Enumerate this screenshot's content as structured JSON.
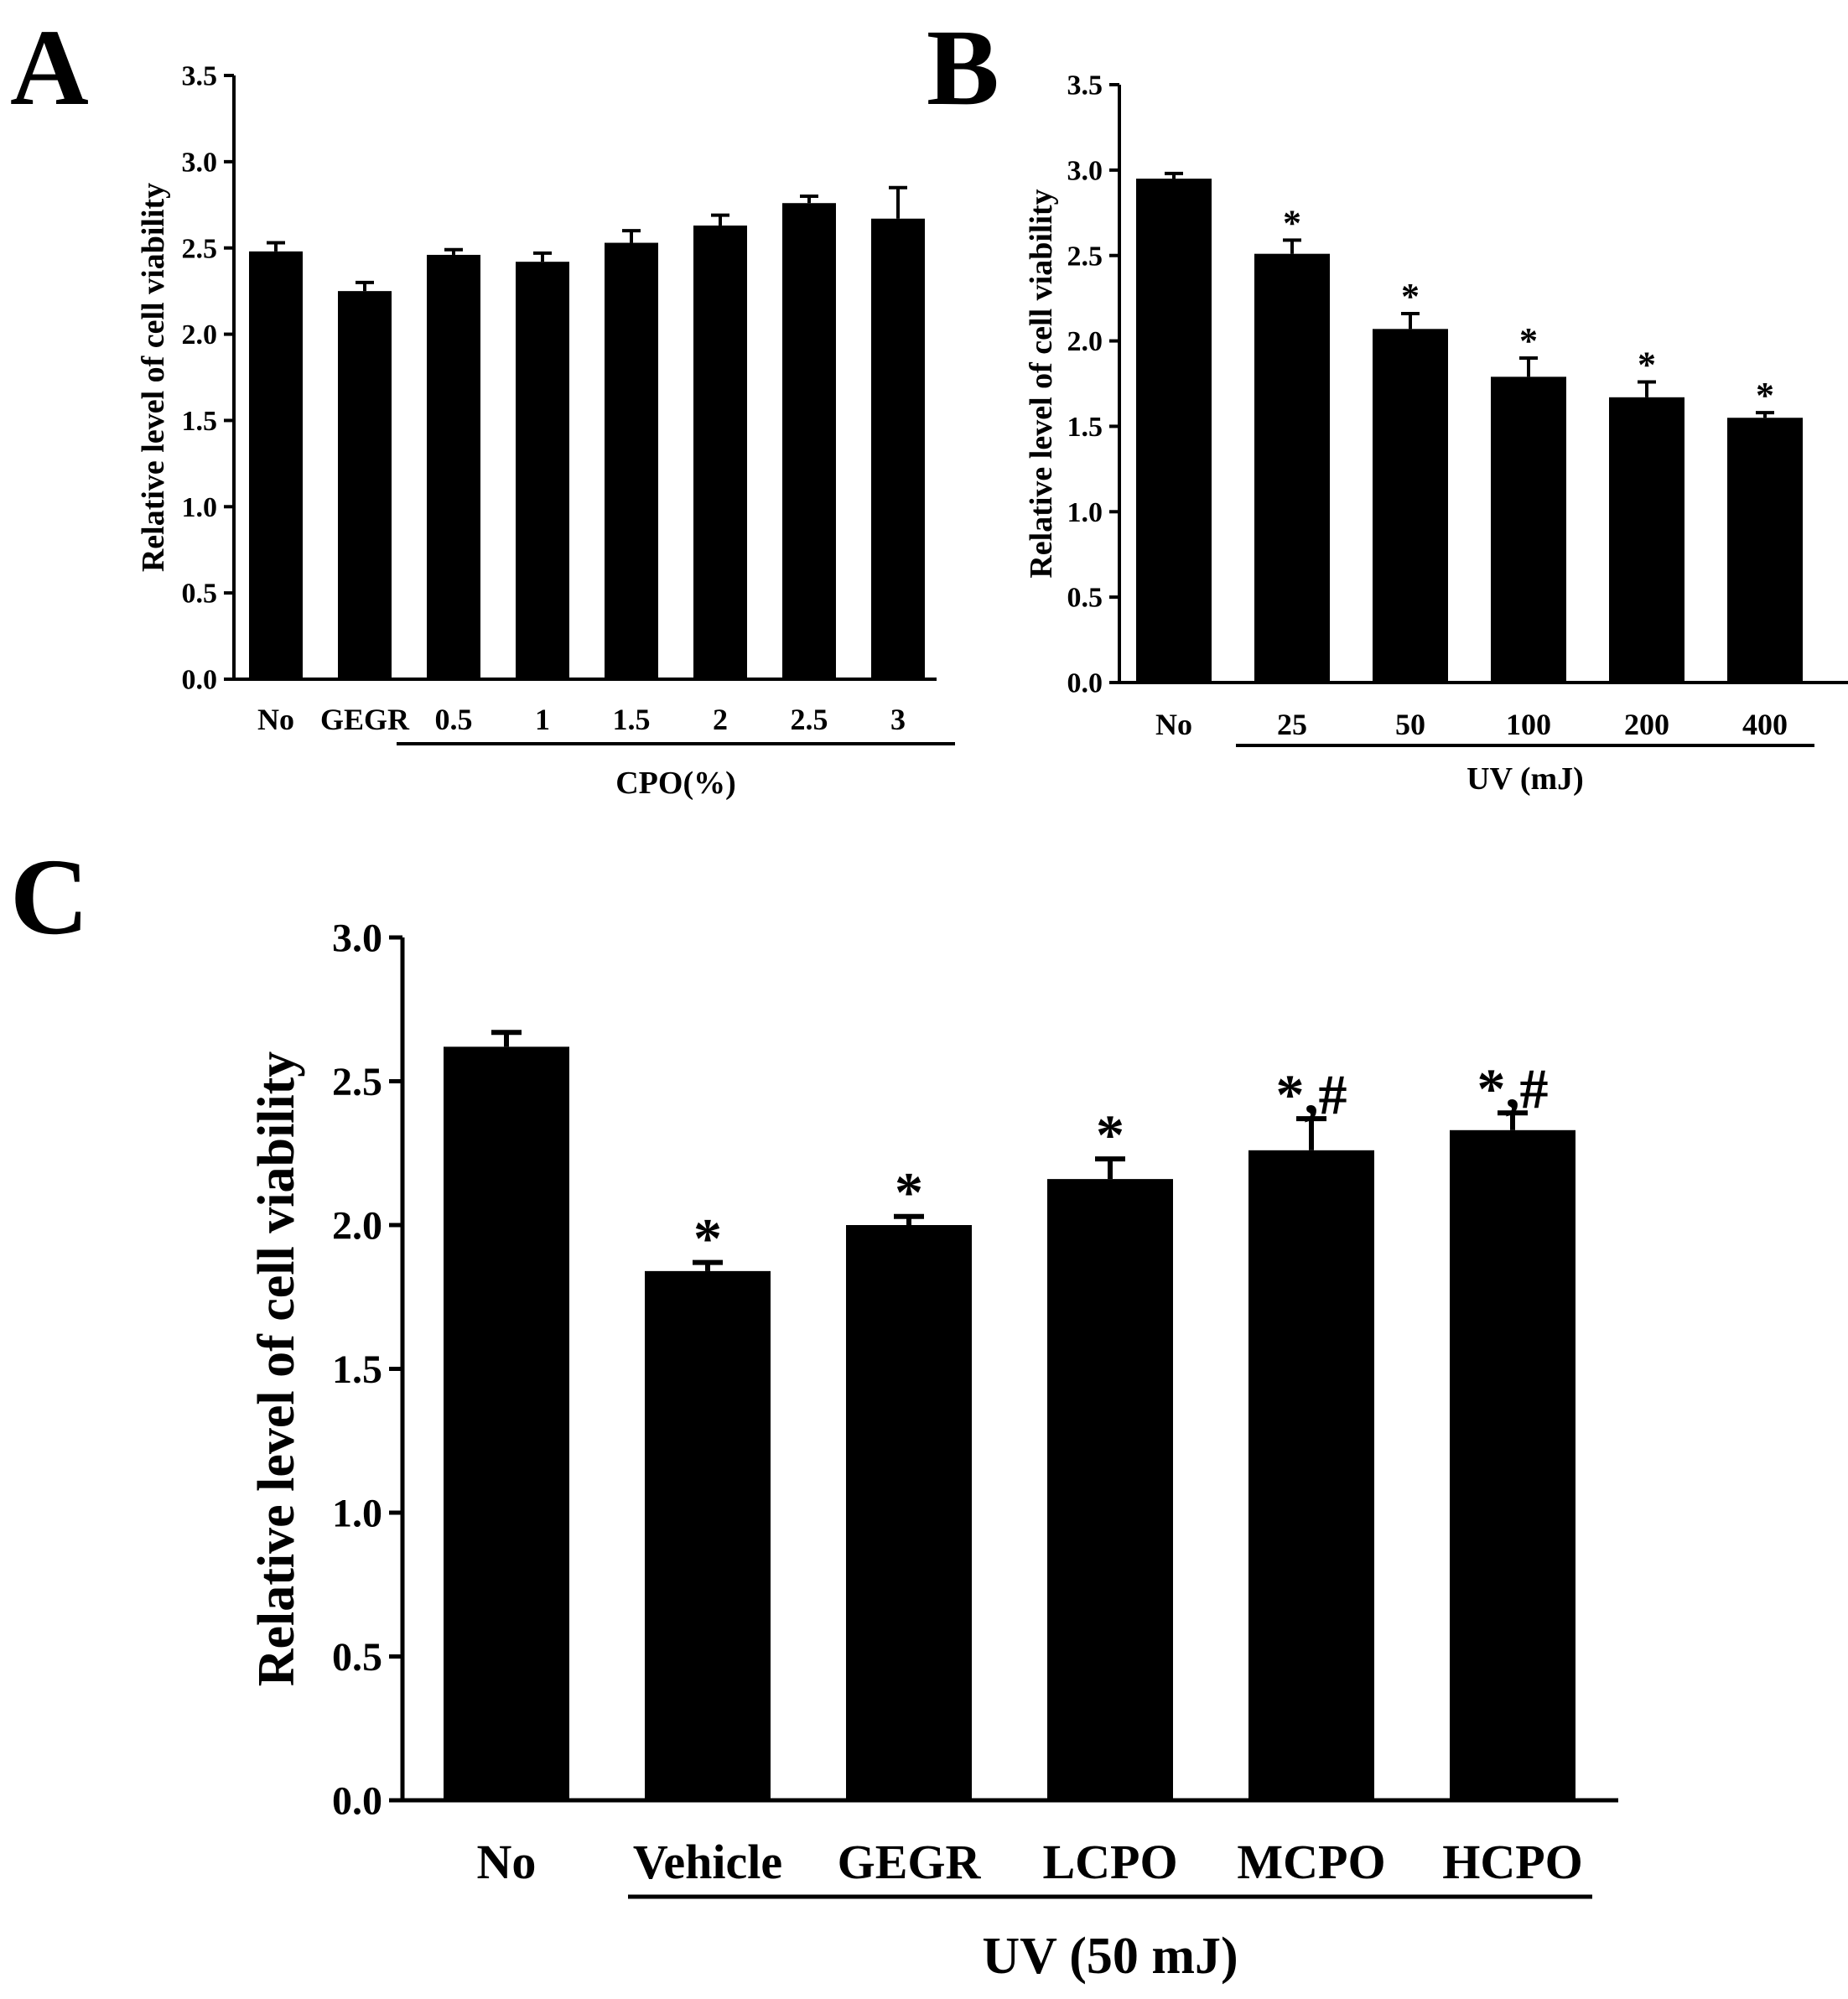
{
  "figure": {
    "colors": {
      "bar": "#000000",
      "axis": "#000000",
      "background": "#ffffff"
    }
  },
  "chart_data": [
    {
      "panel": "A",
      "type": "bar",
      "ylabel": "Relative level of cell viability",
      "xlabel": "",
      "ylim": [
        0,
        3.5
      ],
      "yticks": [
        "0.0",
        "0.5",
        "1.0",
        "1.5",
        "2.0",
        "2.5",
        "3.0",
        "3.5"
      ],
      "categories": [
        "No",
        "GEGR",
        "0.5",
        "1",
        "1.5",
        "2",
        "2.5",
        "3"
      ],
      "values": [
        2.48,
        2.25,
        2.46,
        2.42,
        2.53,
        2.63,
        2.76,
        2.67
      ],
      "errors": [
        0.05,
        0.05,
        0.03,
        0.05,
        0.07,
        0.06,
        0.04,
        0.18
      ],
      "annotations": [
        "",
        "",
        "",
        "",
        "",
        "",
        "",
        ""
      ],
      "group": {
        "label": "CPO(%)",
        "start": 2,
        "end": 7
      }
    },
    {
      "panel": "B",
      "type": "bar",
      "ylabel": "Relative level of cell viability",
      "xlabel": "",
      "ylim": [
        0,
        3.5
      ],
      "yticks": [
        "0.0",
        "0.5",
        "1.0",
        "1.5",
        "2.0",
        "2.5",
        "3.0",
        "3.5"
      ],
      "categories": [
        "No",
        "25",
        "50",
        "100",
        "200",
        "400"
      ],
      "values": [
        2.95,
        2.51,
        2.07,
        1.79,
        1.67,
        1.55
      ],
      "errors": [
        0.03,
        0.08,
        0.09,
        0.11,
        0.09,
        0.03
      ],
      "annotations": [
        "",
        "*",
        "*",
        "*",
        "*",
        "*"
      ],
      "group": {
        "label": "UV (mJ)",
        "start": 1,
        "end": 5
      }
    },
    {
      "panel": "C",
      "type": "bar",
      "ylabel": "Relative level of cell viability",
      "xlabel": "",
      "ylim": [
        0,
        3.0
      ],
      "yticks": [
        "0.0",
        "0.5",
        "1.0",
        "1.5",
        "2.0",
        "2.5",
        "3.0"
      ],
      "categories": [
        "No",
        "Vehicle",
        "GEGR",
        "LCPO",
        "MCPO",
        "HCPO"
      ],
      "values": [
        2.62,
        1.84,
        2.0,
        2.16,
        2.26,
        2.33
      ],
      "errors": [
        0.05,
        0.03,
        0.03,
        0.07,
        0.11,
        0.06
      ],
      "annotations": [
        "",
        "*",
        "*",
        "*",
        "*,#",
        "*,#"
      ],
      "group": {
        "label": "UV (50 mJ)",
        "start": 1,
        "end": 5
      }
    }
  ]
}
